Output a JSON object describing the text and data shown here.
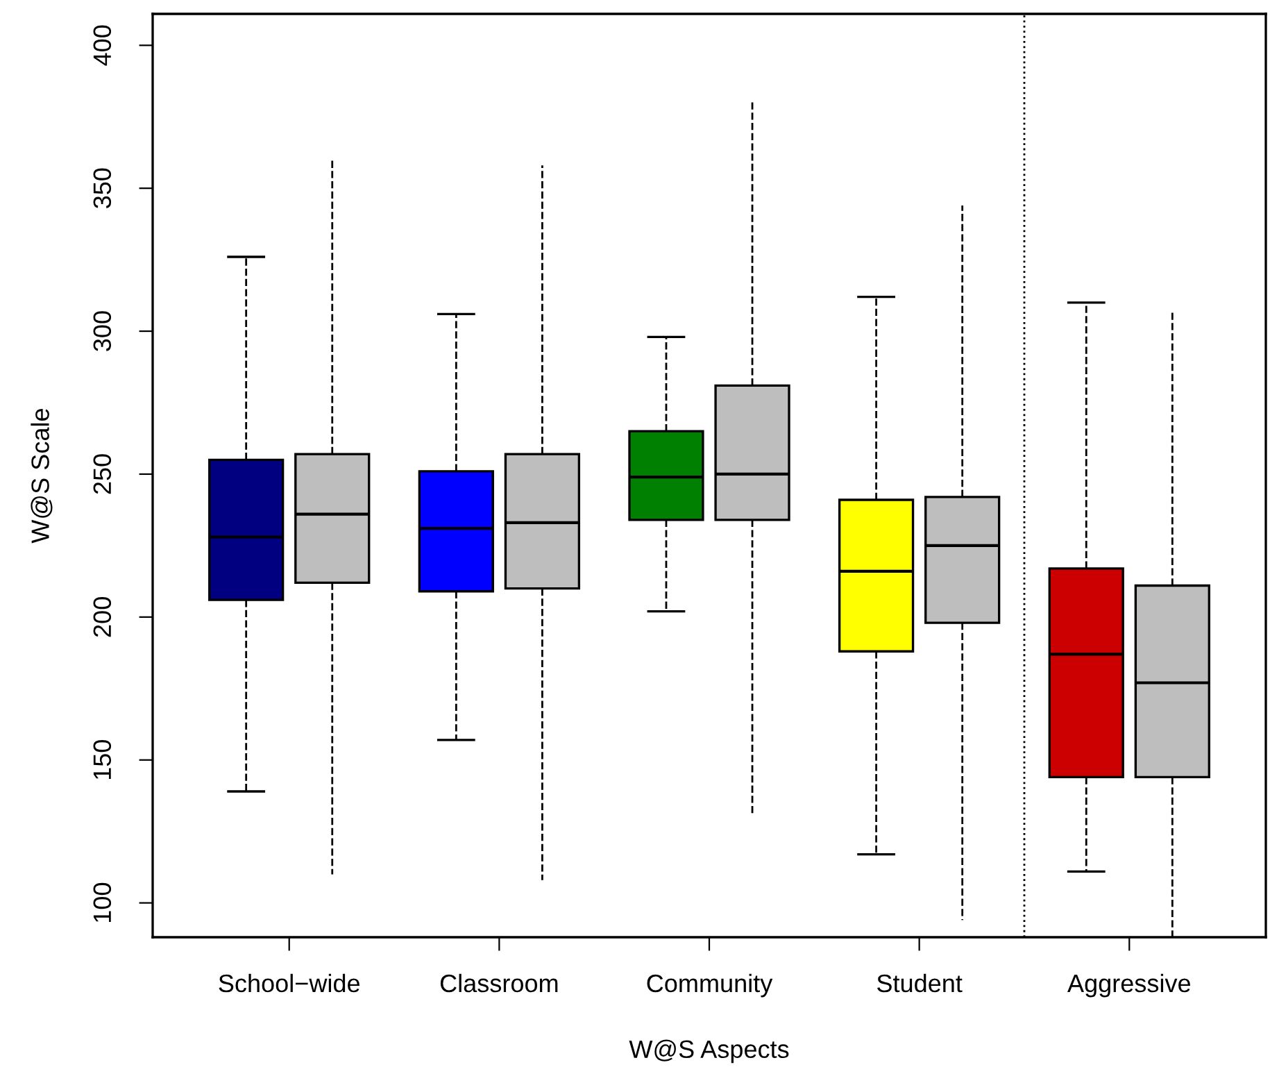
{
  "chart_data": {
    "type": "box",
    "xlabel": "W@S Aspects",
    "ylabel": "W@S Scale",
    "categories": [
      "School−wide",
      "Classroom",
      "Community",
      "Student",
      "Aggressive"
    ],
    "ylim": [
      88,
      411
    ],
    "yticks": [
      100,
      150,
      200,
      250,
      300,
      350,
      400
    ],
    "grid": false,
    "legend": false,
    "series": [
      {
        "colors": [
          "#000080",
          "#0000ff",
          "#008000",
          "#ffff00",
          "#cc0000"
        ],
        "boxes": [
          {
            "low": 139,
            "q1": 206,
            "median": 228,
            "q3": 255,
            "high": 326
          },
          {
            "low": 157,
            "q1": 209,
            "median": 231,
            "q3": 251,
            "high": 306
          },
          {
            "low": 202,
            "q1": 234,
            "median": 249,
            "q3": 265,
            "high": 298
          },
          {
            "low": 117,
            "q1": 188,
            "median": 216,
            "q3": 241,
            "high": 312
          },
          {
            "low": 111,
            "q1": 144,
            "median": 187,
            "q3": 217,
            "high": 310
          }
        ]
      },
      {
        "color": "#bebebe",
        "boxes": [
          {
            "low": 110,
            "q1": 212,
            "median": 236,
            "q3": 257,
            "high": 360
          },
          {
            "low": 108,
            "q1": 210,
            "median": 233,
            "q3": 257,
            "high": 358
          },
          {
            "low": 131,
            "q1": 234,
            "median": 250,
            "q3": 281,
            "high": 381
          },
          {
            "low": 94,
            "q1": 198,
            "median": 225,
            "q3": 242,
            "high": 344
          },
          {
            "low": 88,
            "q1": 144,
            "median": 177,
            "q3": 211,
            "high": 307
          }
        ]
      }
    ]
  }
}
